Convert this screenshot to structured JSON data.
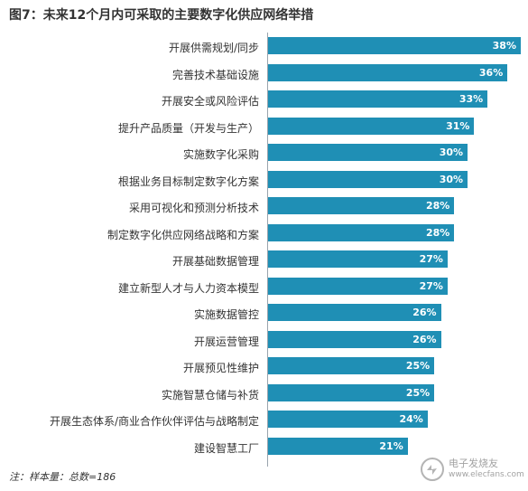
{
  "title": "图7：未来12个月内可采取的主要数字化供应网络举措",
  "note": "注：样本量：总数=186",
  "watermark": {
    "line1": "电子发烧友",
    "line2": "www.elecfans.com"
  },
  "colors": {
    "bar": "#1f8fb5",
    "axis": "#9aa4ad"
  },
  "chart_data": {
    "type": "bar",
    "orientation": "horizontal",
    "categories": [
      "开展供需规划/同步",
      "完善技术基础设施",
      "开展安全或风险评估",
      "提升产品质量（开发与生产）",
      "实施数字化采购",
      "根据业务目标制定数字化方案",
      "采用可视化和预测分析技术",
      "制定数字化供应网络战略和方案",
      "开展基础数据管理",
      "建立新型人才与人力资本模型",
      "实施数据管控",
      "开展运营管理",
      "开展预见性维护",
      "实施智慧仓储与补货",
      "开展生态体系/商业合作伙伴评估与战略制定",
      "建设智慧工厂"
    ],
    "values": [
      38,
      36,
      33,
      31,
      30,
      30,
      28,
      28,
      27,
      27,
      26,
      26,
      25,
      25,
      24,
      21
    ],
    "value_suffix": "%",
    "xlim": [
      0,
      38
    ]
  }
}
